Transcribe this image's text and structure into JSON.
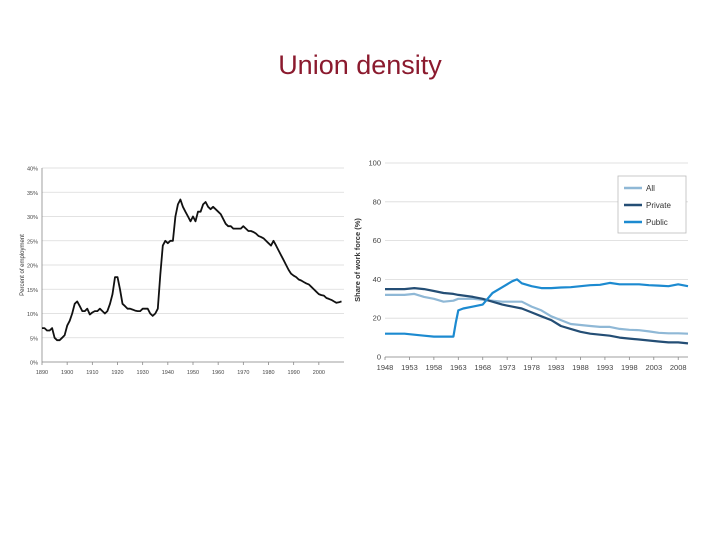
{
  "slide": {
    "title": "Union density"
  },
  "chart_data": [
    {
      "type": "line",
      "title": "",
      "xlabel": "",
      "ylabel": "Percent of employment",
      "xlim": [
        1890,
        2010
      ],
      "ylim": [
        0,
        40
      ],
      "x_ticks": [
        "1890",
        "1900",
        "1910",
        "1920",
        "1930",
        "1940",
        "1950",
        "1960",
        "1970",
        "1980",
        "1990",
        "2000"
      ],
      "y_ticks": [
        "0%",
        "5%",
        "10%",
        "15%",
        "20%",
        "25%",
        "30%",
        "35%",
        "40%"
      ],
      "grid": true,
      "legend": "none",
      "colors": {
        "line": "#111111",
        "grid": "#d9d9d9"
      },
      "series": [
        {
          "name": "",
          "x": [
            1890,
            1891,
            1892,
            1893,
            1894,
            1895,
            1896,
            1897,
            1898,
            1899,
            1900,
            1901,
            1902,
            1903,
            1904,
            1905,
            1906,
            1907,
            1908,
            1909,
            1910,
            1911,
            1912,
            1913,
            1914,
            1915,
            1916,
            1917,
            1918,
            1919,
            1920,
            1921,
            1922,
            1923,
            1924,
            1925,
            1926,
            1927,
            1928,
            1929,
            1930,
            1931,
            1932,
            1933,
            1934,
            1935,
            1936,
            1937,
            1938,
            1939,
            1940,
            1941,
            1942,
            1943,
            1944,
            1945,
            1946,
            1947,
            1948,
            1949,
            1950,
            1951,
            1952,
            1953,
            1954,
            1955,
            1956,
            1957,
            1958,
            1959,
            1960,
            1961,
            1962,
            1963,
            1964,
            1965,
            1966,
            1967,
            1968,
            1969,
            1970,
            1971,
            1972,
            1973,
            1974,
            1975,
            1976,
            1977,
            1978,
            1979,
            1980,
            1981,
            1982,
            1983,
            1984,
            1985,
            1986,
            1987,
            1988,
            1989,
            1990,
            1991,
            1992,
            1993,
            1994,
            1995,
            1996,
            1997,
            1998,
            1999,
            2000,
            2001,
            2002,
            2003,
            2004,
            2005,
            2006,
            2007,
            2008,
            2009
          ],
          "values": [
            7,
            7,
            6.5,
            6.5,
            7,
            5,
            4.5,
            4.5,
            5,
            5.5,
            7.5,
            8.5,
            10,
            12,
            12.5,
            11.5,
            10.5,
            10.5,
            11,
            9.8,
            10.2,
            10.5,
            10.5,
            11,
            10.5,
            10,
            10.5,
            12,
            14,
            17.5,
            17.5,
            15,
            12,
            11.5,
            11,
            11,
            10.8,
            10.6,
            10.5,
            10.5,
            11,
            11,
            11,
            10,
            9.5,
            10,
            11,
            18,
            24,
            25,
            24.5,
            25,
            25,
            30,
            32.5,
            33.5,
            32,
            31,
            30,
            29,
            30,
            29,
            31,
            31,
            32.5,
            33,
            32,
            31.5,
            32,
            31.5,
            31,
            30.5,
            29.5,
            28.5,
            28,
            28,
            27.5,
            27.5,
            27.5,
            27.5,
            28,
            27.5,
            27,
            27,
            26.8,
            26.5,
            26,
            25.8,
            25.5,
            25,
            24.5,
            24,
            25,
            24,
            23,
            22,
            21,
            20,
            19,
            18.2,
            17.8,
            17.5,
            17,
            16.8,
            16.5,
            16.2,
            16,
            15.5,
            15,
            14.5,
            14,
            13.8,
            13.7,
            13.2,
            13,
            12.8,
            12.5,
            12.2,
            12.3,
            12.5
          ]
        }
      ]
    },
    {
      "type": "line",
      "title": "",
      "xlabel": "",
      "ylabel": "Share of work force (%)",
      "xlim": [
        1948,
        2010
      ],
      "ylim": [
        0,
        100
      ],
      "x_ticks": [
        "1948",
        "1953",
        "1958",
        "1963",
        "1968",
        "1973",
        "1978",
        "1983",
        "1988",
        "1993",
        "1998",
        "2003",
        "2008"
      ],
      "y_ticks": [
        "0",
        "20",
        "40",
        "60",
        "80",
        "100"
      ],
      "grid": true,
      "legend": "top-right",
      "colors": {
        "grid": "#d9d9d9"
      },
      "series": [
        {
          "name": "All",
          "color": "#8fb8d6",
          "x": [
            1948,
            1950,
            1952,
            1954,
            1956,
            1958,
            1960,
            1962,
            1963,
            1966,
            1968,
            1970,
            1972,
            1974,
            1976,
            1978,
            1980,
            1982,
            1984,
            1986,
            1988,
            1990,
            1992,
            1994,
            1996,
            1998,
            2000,
            2002,
            2004,
            2006,
            2008,
            2010
          ],
          "values": [
            32,
            32,
            32,
            32.5,
            31,
            30,
            28.5,
            29,
            30,
            30,
            29.5,
            29,
            28.5,
            28.5,
            28.5,
            26,
            24,
            21,
            19,
            17,
            16.5,
            16,
            15.5,
            15.5,
            14.5,
            14,
            13.8,
            13.2,
            12.5,
            12.2,
            12.2,
            12
          ]
        },
        {
          "name": "Private",
          "color": "#244e75",
          "x": [
            1948,
            1950,
            1952,
            1954,
            1956,
            1958,
            1960,
            1962,
            1963,
            1966,
            1968,
            1970,
            1972,
            1974,
            1976,
            1978,
            1980,
            1982,
            1984,
            1986,
            1988,
            1990,
            1992,
            1994,
            1996,
            1998,
            2000,
            2002,
            2004,
            2006,
            2008,
            2010
          ],
          "values": [
            35,
            35,
            35,
            35.5,
            35,
            34,
            33,
            32.5,
            32,
            31,
            30,
            28.5,
            27,
            26,
            25,
            23,
            21,
            19,
            16,
            14.5,
            13,
            12,
            11.5,
            11,
            10,
            9.5,
            9,
            8.5,
            8,
            7.5,
            7.5,
            7
          ]
        },
        {
          "name": "Public",
          "color": "#1c8ad0",
          "x": [
            1948,
            1950,
            1952,
            1954,
            1956,
            1958,
            1960,
            1962,
            1962.5,
            1963,
            1964,
            1966,
            1968,
            1970,
            1972,
            1974,
            1975,
            1976,
            1978,
            1980,
            1982,
            1984,
            1986,
            1988,
            1990,
            1992,
            1994,
            1996,
            1998,
            2000,
            2002,
            2004,
            2006,
            2008,
            2010
          ],
          "values": [
            12,
            12,
            12,
            11.5,
            11,
            10.5,
            10.5,
            10.5,
            18,
            24,
            25,
            26,
            27,
            33,
            36,
            39,
            40,
            38,
            36.5,
            35.5,
            35.5,
            35.8,
            36,
            36.5,
            37,
            37.2,
            38.2,
            37.5,
            37.5,
            37.5,
            37,
            36.8,
            36.5,
            37.5,
            36.5
          ]
        }
      ]
    }
  ]
}
